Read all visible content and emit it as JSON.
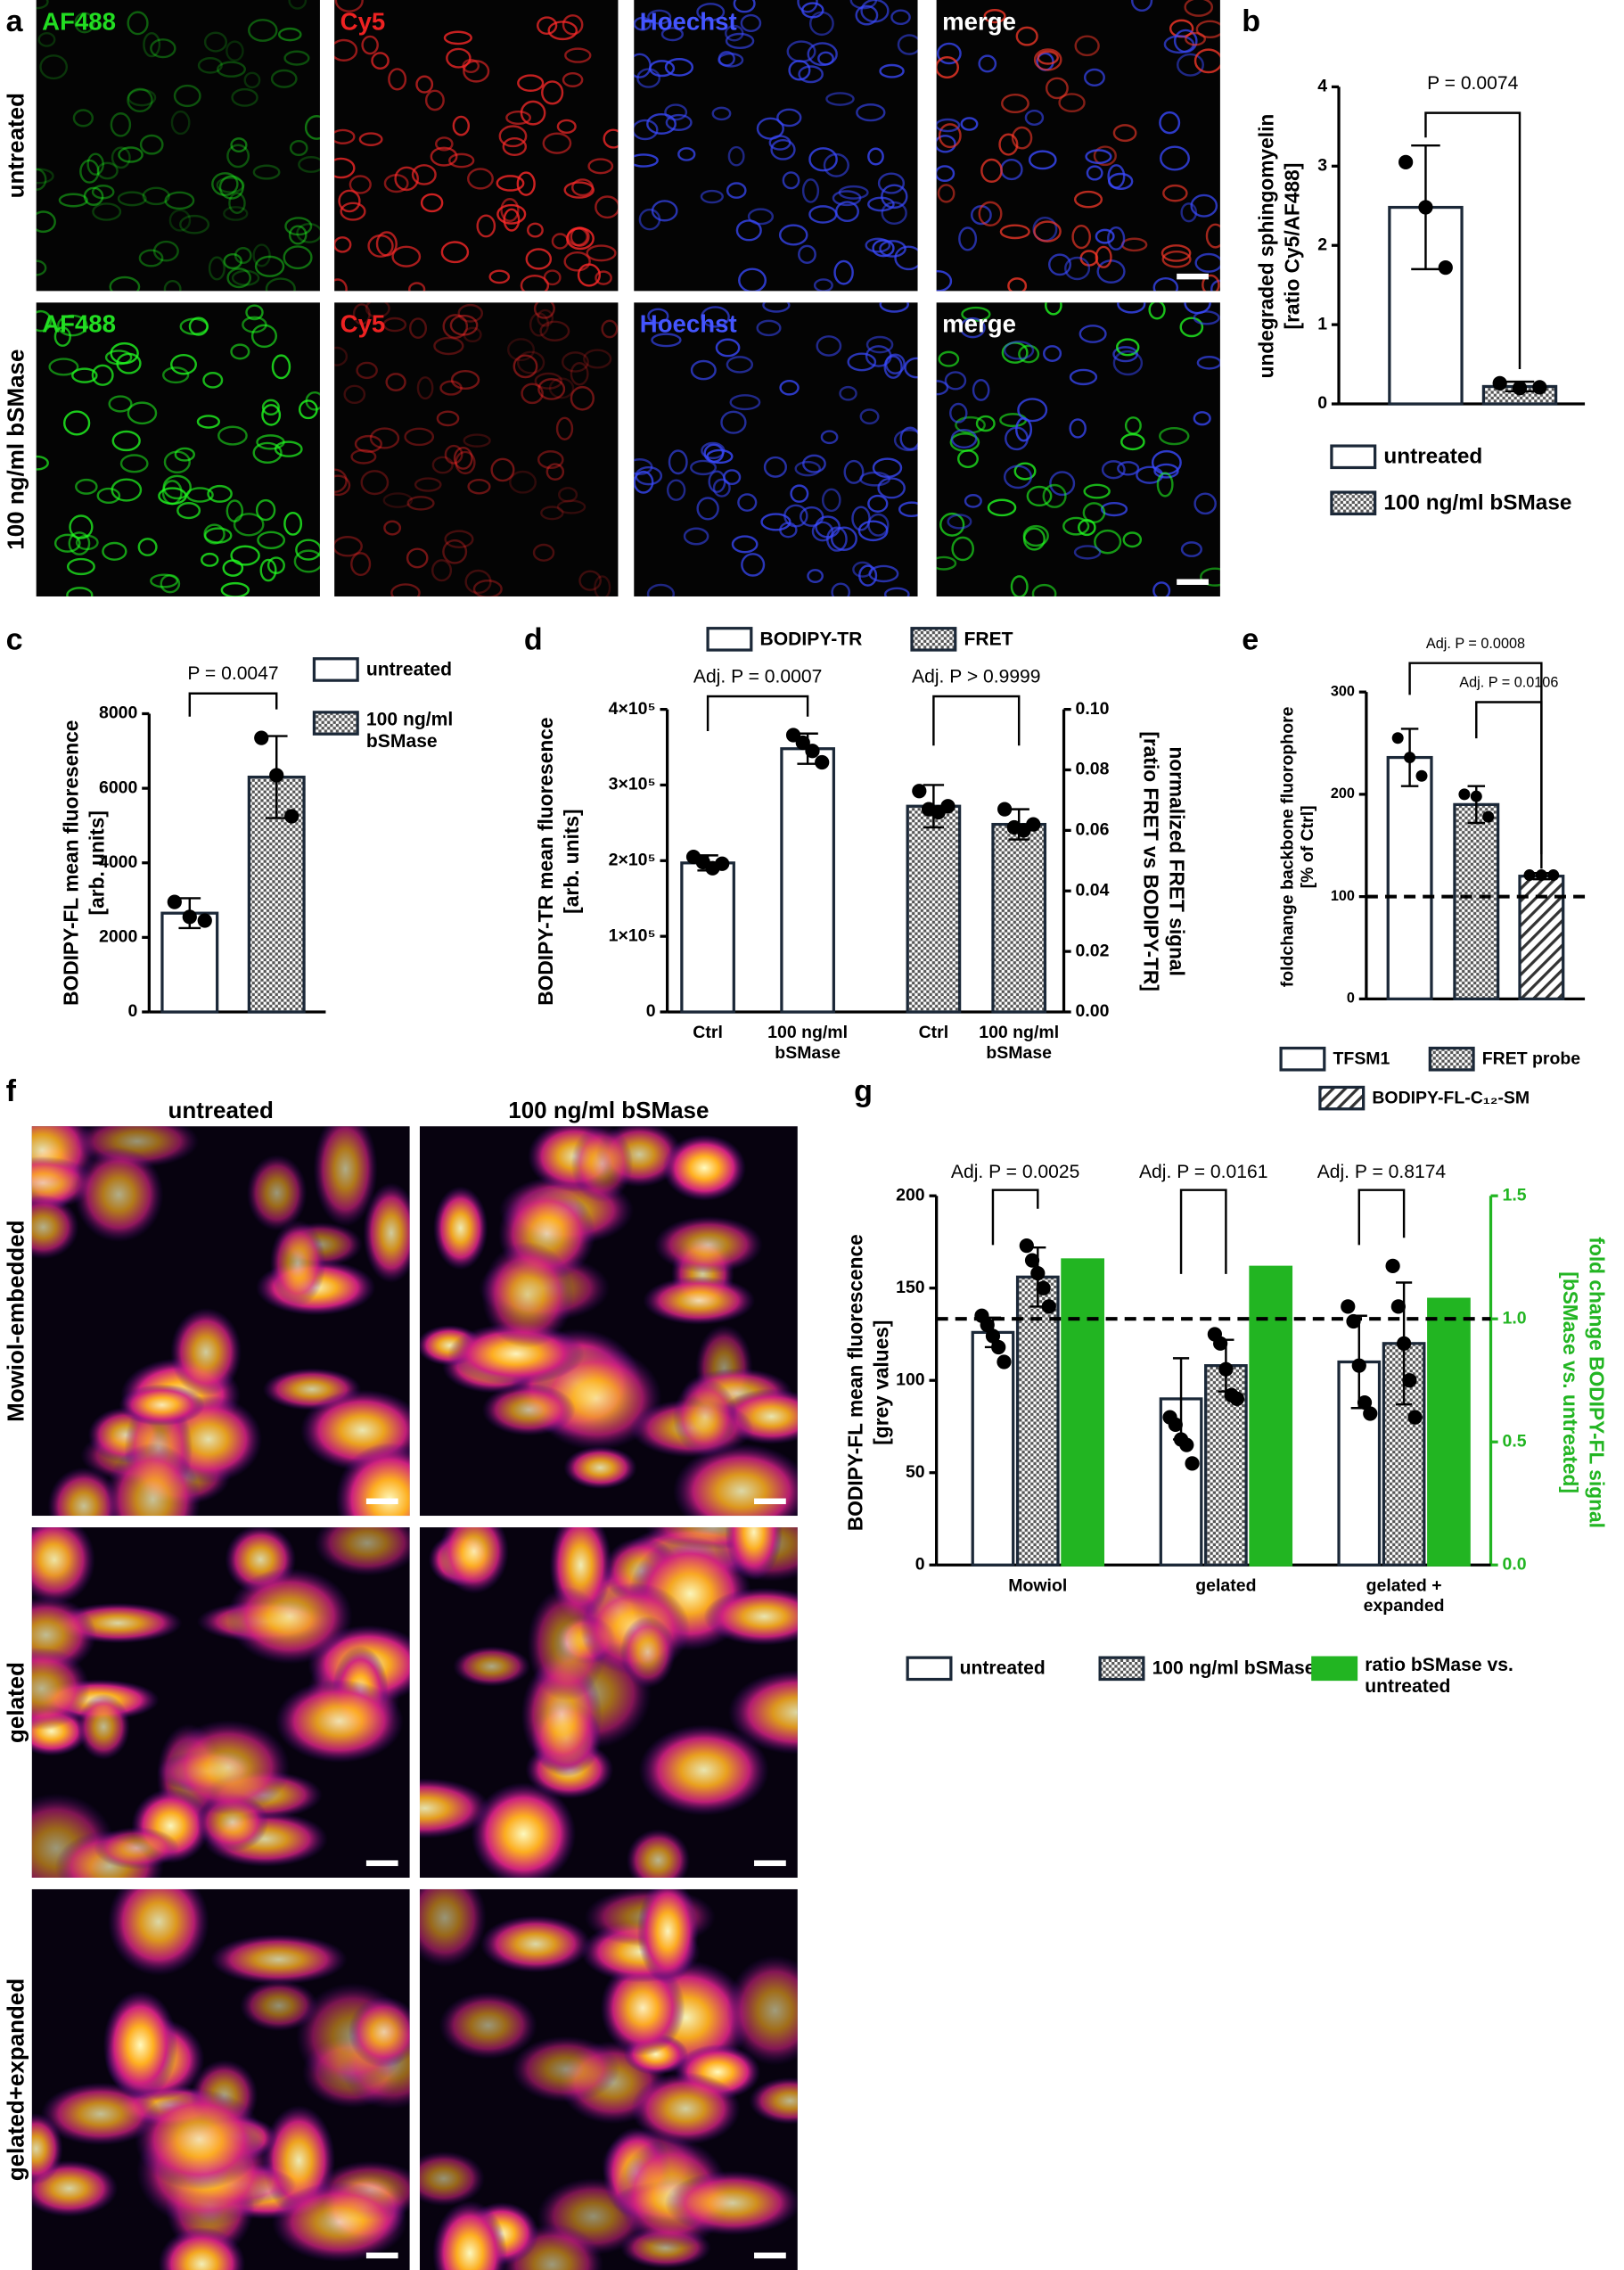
{
  "chart_data": [
    {
      "panel": "b",
      "type": "bar",
      "ylabel": [
        "undegraded sphingomyelin",
        "[ratio Cy5/AF488]"
      ],
      "categories": [
        null,
        null
      ],
      "ylim": [
        0,
        4
      ],
      "yticks": [
        0,
        1,
        2,
        3,
        4
      ],
      "series": [
        {
          "name": "untreated",
          "color": "#ffffff",
          "pattern": "none",
          "values": [
            2.48,
            null
          ],
          "errors": [
            0.78,
            null
          ],
          "points": [
            [
              3.05,
              2.48,
              1.72
            ],
            null
          ]
        },
        {
          "name": "100 ng/ml bSMase",
          "color": "#ffffff",
          "pattern": "checker",
          "values": [
            null,
            0.22
          ],
          "errors": [
            null,
            0.06
          ],
          "points": [
            null,
            [
              0.26,
              0.2,
              0.21
            ]
          ]
        }
      ],
      "annotations": [
        "P = 0.0074"
      ]
    },
    {
      "panel": "c",
      "type": "bar",
      "ylabel": [
        "BODIPY-FL mean fluoresence",
        "[arb. units]"
      ],
      "categories": [
        null,
        null
      ],
      "ylim": [
        0,
        8000
      ],
      "yticks": [
        0,
        2000,
        4000,
        6000,
        8000
      ],
      "series": [
        {
          "name": "untreated",
          "color": "#ffffff",
          "pattern": "none",
          "values": [
            2650,
            null
          ],
          "errors": [
            400,
            null
          ],
          "points": [
            [
              2950,
              2550,
              2450
            ],
            null
          ]
        },
        {
          "name": "100 ng/ml bSMase",
          "color": "#ffffff",
          "pattern": "checker",
          "values": [
            null,
            6300
          ],
          "errors": [
            null,
            1100
          ],
          "points": [
            null,
            [
              7350,
              6350,
              5250
            ]
          ]
        }
      ],
      "annotations": [
        "P = 0.0047"
      ]
    },
    {
      "panel": "d",
      "type": "bar",
      "ylabel": [
        "BODIPY-TR mean fluoresence",
        "[arb. units]"
      ],
      "y2label": [
        "normalized FRET signal",
        "[ratio FRET vs BODIPY-TR]"
      ],
      "categories": [
        "Ctrl",
        "100 ng/ml bSMase",
        "Ctrl",
        "100 ng/ml bSMase"
      ],
      "ylim": [
        0,
        400000
      ],
      "yticks": [
        0,
        {
          "value": 100000,
          "label": "1×10⁵"
        },
        {
          "value": 200000,
          "label": "2×10⁵"
        },
        {
          "value": 300000,
          "label": "3×10⁵"
        },
        {
          "value": 400000,
          "label": "4×10⁵"
        }
      ],
      "y2lim": [
        0,
        0.1
      ],
      "y2ticks": [
        {
          "value": 0,
          "label": "0.00"
        },
        0.02,
        0.04,
        0.06,
        0.08,
        {
          "value": 0.1,
          "label": "0.10"
        }
      ],
      "series": [
        {
          "name": "BODIPY-TR",
          "color": "#ffffff",
          "pattern": "none",
          "values": [
            197000,
            348000,
            null,
            null
          ],
          "errors": [
            10000,
            20000,
            null,
            null
          ],
          "points": [
            [
              205000,
              198000,
              190000,
              196000
            ],
            [
              366000,
              356000,
              345000,
              330000
            ],
            null,
            null
          ]
        },
        {
          "name": "FRET",
          "axis": "y2",
          "color": "#ffffff",
          "pattern": "checker",
          "values": [
            null,
            null,
            0.068,
            0.062
          ],
          "errors": [
            null,
            null,
            0.007,
            0.005
          ],
          "points": [
            null,
            null,
            [
              0.073,
              0.067,
              0.066,
              0.068
            ],
            [
              0.067,
              0.061,
              0.06,
              0.062
            ]
          ]
        }
      ],
      "annotations": [
        "Adj. P = 0.0007",
        "Adj. P > 0.9999"
      ]
    },
    {
      "panel": "e",
      "type": "bar",
      "ylabel": [
        "foldchange backbone fluorophore",
        "[% of Ctrl]"
      ],
      "categories": [
        null,
        null,
        null
      ],
      "ylim": [
        0,
        300
      ],
      "yticks": [
        0,
        100,
        200,
        300
      ],
      "reference_line": 100,
      "series": [
        {
          "name": "TFSM1",
          "color": "#ffffff",
          "pattern": "none",
          "values": [
            236,
            null,
            null
          ],
          "errors": [
            28,
            null,
            null
          ],
          "points": [
            [
              255,
              236,
              218
            ],
            null,
            null
          ]
        },
        {
          "name": "FRET probe",
          "color": "#ffffff",
          "pattern": "checker",
          "values": [
            null,
            190,
            null
          ],
          "errors": [
            null,
            18,
            null
          ],
          "points": [
            null,
            [
              200,
              198,
              178
            ],
            null
          ]
        },
        {
          "name": "BODIPY-FL-C₁₂-SM",
          "color": "#ffffff",
          "pattern": "hatch",
          "values": [
            null,
            null,
            120
          ],
          "errors": [
            null,
            null,
            3
          ],
          "points": [
            null,
            null,
            [
              121,
              121,
              121
            ]
          ]
        }
      ],
      "annotations": [
        "Adj. P = 0.0008",
        "Adj. P = 0.0106"
      ]
    },
    {
      "panel": "g",
      "type": "bar",
      "ylabel": [
        "BODIPY-FL mean fluorescence",
        "[grey values]"
      ],
      "y2label": [
        "fold change BODIPY-FL signal",
        "[bSMase vs. untreated]"
      ],
      "y2color": "#22b522",
      "categories": [
        "Mowiol",
        "gelated",
        "gelated + expanded"
      ],
      "ylim": [
        0,
        200
      ],
      "yticks": [
        0,
        50,
        100,
        150,
        200
      ],
      "y2lim": [
        0,
        1.5
      ],
      "y2ticks": [
        {
          "value": 0,
          "label": "0.0"
        },
        0.5,
        {
          "value": 1,
          "label": "1.0"
        },
        1.5
      ],
      "reference_line": 1,
      "reference_axis": "y2",
      "series": [
        {
          "name": "untreated",
          "color": "#ffffff",
          "pattern": "none",
          "values": [
            126,
            90,
            110
          ],
          "errors": [
            8,
            22,
            25
          ],
          "points": [
            [
              135,
              130,
              124,
              118,
              110
            ],
            [
              80,
              76,
              68,
              65,
              55
            ],
            [
              140,
              132,
              108,
              88,
              82
            ]
          ]
        },
        {
          "name": "100 ng/ml bSMase",
          "color": "#ffffff",
          "pattern": "checker",
          "values": [
            156,
            108,
            120
          ],
          "errors": [
            16,
            14,
            33
          ],
          "points": [
            [
              173,
              165,
              158,
              150,
              140
            ],
            [
              125,
              120,
              106,
              92,
              90
            ],
            [
              162,
              140,
              120,
              100,
              80
            ]
          ]
        },
        {
          "name": "ratio bSMase vs. untreated",
          "axis": "y2",
          "color": "#22b522",
          "pattern": "none",
          "values": [
            1.24,
            1.21,
            1.08
          ]
        }
      ],
      "annotations": [
        "Adj. P = 0.0025",
        "Adj. P = 0.0161",
        "Adj. P = 0.8174"
      ]
    }
  ],
  "image_panels": [
    {
      "panel": "a",
      "columns": [
        "AF488",
        "Cy5",
        "Hoechst",
        "merge"
      ],
      "rows": [
        "untreated",
        "100 ng/ml bSMase"
      ]
    },
    {
      "panel": "f",
      "columns": [
        "untreated",
        "100 ng/ml bSMase"
      ],
      "rows": [
        "Mowiol-embedded",
        "gelated",
        "gelated+expanded"
      ]
    }
  ]
}
